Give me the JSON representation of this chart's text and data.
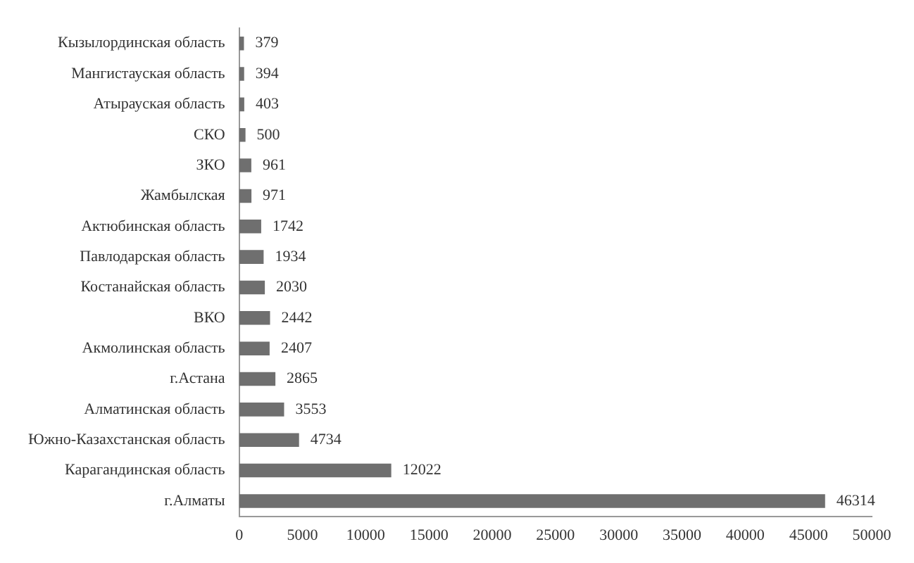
{
  "chart_data": {
    "type": "bar",
    "orientation": "horizontal",
    "categories": [
      "Кызылординская область",
      "Мангистауская область",
      "Атырауская область",
      "СКО",
      "ЗКО",
      "Жамбылская",
      "Актюбинская область",
      "Павлодарская область",
      "Костанайская область",
      "ВКО",
      "Акмолинская область",
      "г.Астана",
      "Алматинская область",
      "Южно-Казахстанская область",
      "Карагандинская область",
      "г.Алматы"
    ],
    "values": [
      379,
      394,
      403,
      500,
      961,
      971,
      1742,
      1934,
      2030,
      2442,
      2407,
      2865,
      3553,
      4734,
      12022,
      46314
    ],
    "color": "#6f6f6f",
    "xlim": [
      0,
      50000
    ],
    "xticks": [
      0,
      5000,
      10000,
      15000,
      20000,
      25000,
      30000,
      35000,
      40000,
      45000,
      50000
    ],
    "grid": false,
    "data_labels": true
  }
}
